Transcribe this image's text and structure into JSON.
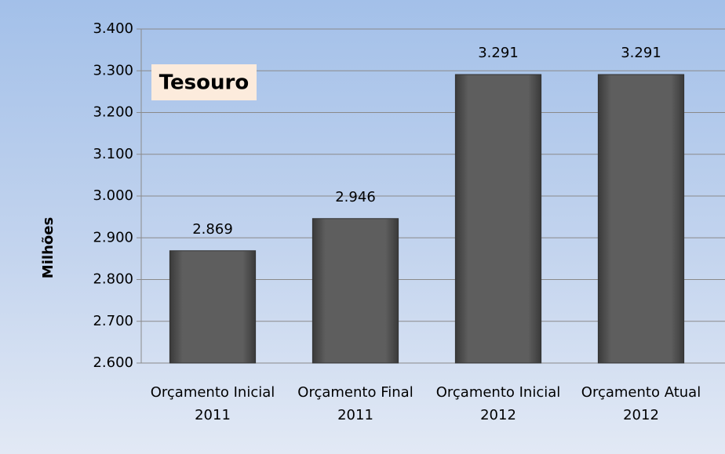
{
  "chart_data": {
    "type": "bar",
    "annotation": "Tesouro",
    "y_label": "Milhões",
    "categories": [
      "Orçamento Inicial 2011",
      "Orçamento Final 2011",
      "Orçamento Inicial 2012",
      "Orçamento Atual 2012"
    ],
    "values": [
      2869,
      2946,
      3291,
      3291
    ],
    "value_labels": [
      "2.869",
      "2.946",
      "3.291",
      "3.291"
    ],
    "color": "#555555",
    "ylim": [
      2600,
      3400
    ],
    "yticks": [
      {
        "value": 2600,
        "label": "2.600"
      },
      {
        "value": 2700,
        "label": "2.700"
      },
      {
        "value": 2800,
        "label": "2.800"
      },
      {
        "value": 2900,
        "label": "2.900"
      },
      {
        "value": 3000,
        "label": "3.000"
      },
      {
        "value": 3100,
        "label": "3.100"
      },
      {
        "value": 3200,
        "label": "3.200"
      },
      {
        "value": 3300,
        "label": "3.300"
      },
      {
        "value": 3400,
        "label": "3.400"
      }
    ],
    "grid": true
  }
}
